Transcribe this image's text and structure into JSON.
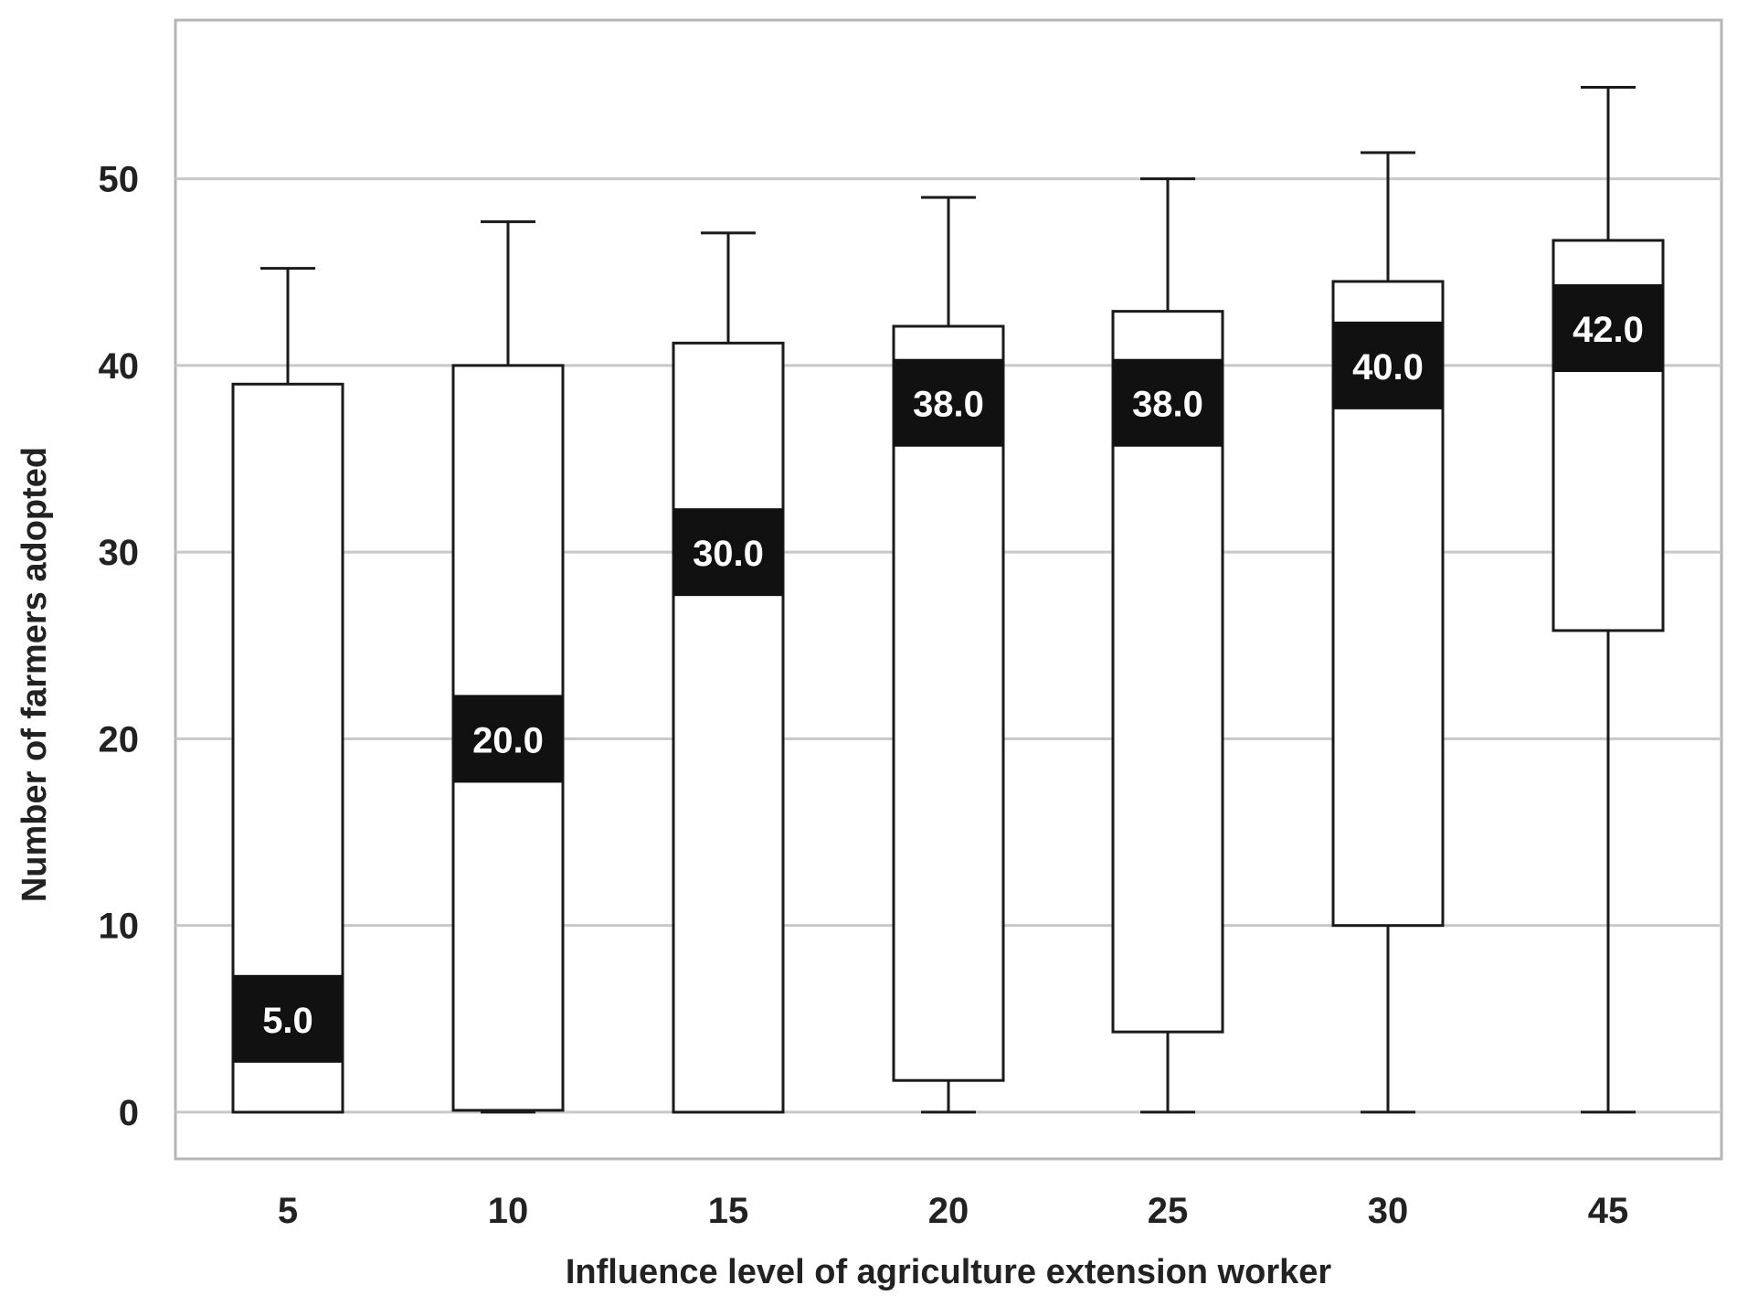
{
  "chart_data": {
    "type": "boxplot",
    "title": "",
    "xlabel": "Influence level of agriculture extension worker",
    "ylabel": "Number of farmers adopted",
    "ylim": [
      -2.5,
      58.5
    ],
    "y_ticks": [
      0,
      10,
      20,
      30,
      40,
      50
    ],
    "grid": "horizontal",
    "legend": "none",
    "categories": [
      "5",
      "10",
      "15",
      "20",
      "25",
      "30",
      "45"
    ],
    "boxes": [
      {
        "category": "5",
        "whisker_low": 0,
        "q1": 0,
        "median": 5,
        "q3": 39,
        "whisker_high": 45.2,
        "median_label": "5.0"
      },
      {
        "category": "10",
        "whisker_low": 0,
        "q1": 0.1,
        "median": 20,
        "q3": 40,
        "whisker_high": 47.7,
        "median_label": "20.0"
      },
      {
        "category": "15",
        "whisker_low": 0,
        "q1": 0,
        "median": 30,
        "q3": 41.2,
        "whisker_high": 47.1,
        "median_label": "30.0"
      },
      {
        "category": "20",
        "whisker_low": 0,
        "q1": 1.7,
        "median": 38,
        "q3": 42.1,
        "whisker_high": 49.0,
        "median_label": "38.0"
      },
      {
        "category": "25",
        "whisker_low": 0,
        "q1": 4.3,
        "median": 38,
        "q3": 42.9,
        "whisker_high": 50.0,
        "median_label": "38.0"
      },
      {
        "category": "30",
        "whisker_low": 0,
        "q1": 10.0,
        "median": 40,
        "q3": 44.5,
        "whisker_high": 51.4,
        "median_label": "40.0"
      },
      {
        "category": "45",
        "whisker_low": 0,
        "q1": 25.8,
        "median": 42,
        "q3": 46.7,
        "whisker_high": 54.9,
        "median_label": "42.0"
      }
    ],
    "colors": {
      "box_fill": "#ffffff",
      "box_stroke": "#1a1a1a",
      "median_band": "#111111",
      "median_text": "#ffffff",
      "grid": "#c8c8c8",
      "frame": "#b5b5b5",
      "text": "#222222"
    }
  }
}
